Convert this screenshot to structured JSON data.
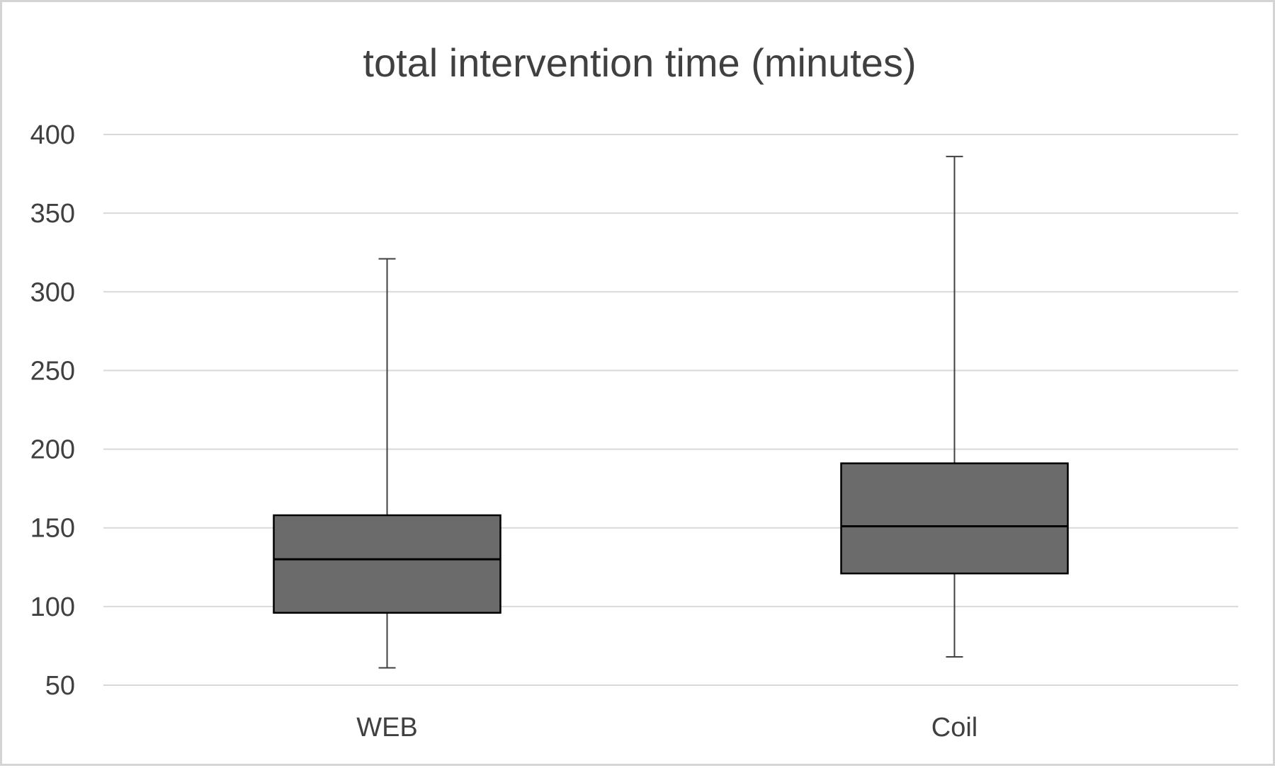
{
  "chart_data": {
    "type": "box",
    "title": "total intervention time (minutes)",
    "xlabel": "",
    "ylabel": "",
    "ylim": [
      50,
      400
    ],
    "yticks": [
      50,
      100,
      150,
      200,
      250,
      300,
      350,
      400
    ],
    "grid": true,
    "legend": "none",
    "categories": [
      "WEB",
      "Coil"
    ],
    "boxes": [
      {
        "category": "WEB",
        "min": 61,
        "q1": 96,
        "median": 130,
        "q3": 158,
        "max": 321
      },
      {
        "category": "Coil",
        "min": 68,
        "q1": 121,
        "median": 151,
        "q3": 191,
        "max": 386
      }
    ],
    "colors": {
      "box_fill": "#6b6b6b",
      "box_stroke": "#000000",
      "whisker": "#404040",
      "grid": "#d9d9d9",
      "text": "#404040"
    }
  }
}
